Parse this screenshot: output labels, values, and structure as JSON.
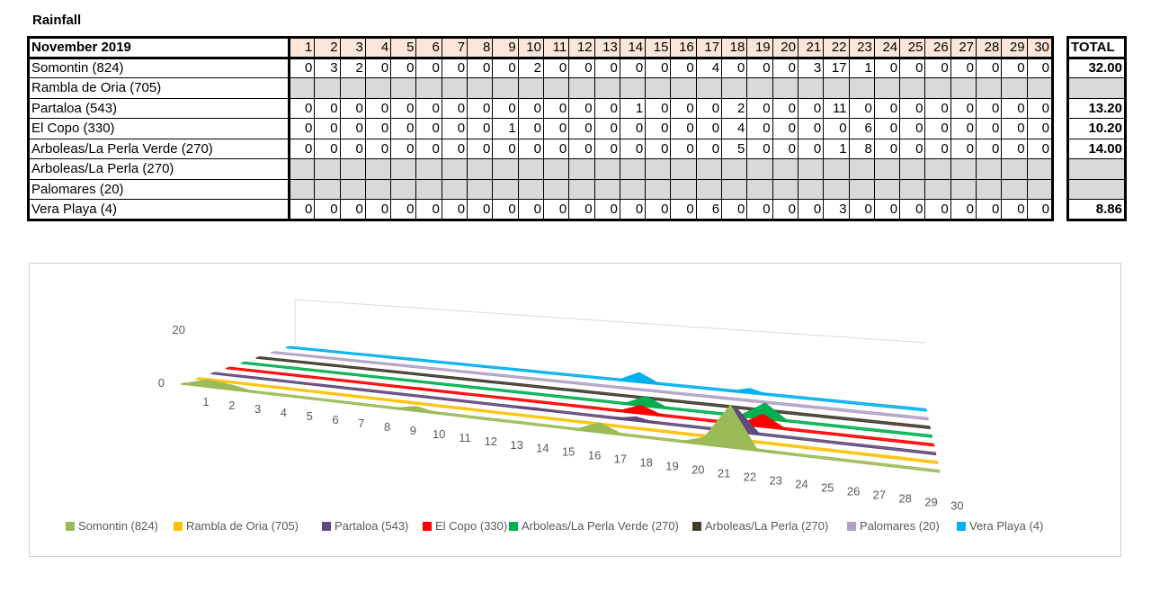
{
  "sheet_title": "Rainfall",
  "table": {
    "header_label": "November 2019",
    "days": [
      "1",
      "2",
      "3",
      "4",
      "5",
      "6",
      "7",
      "8",
      "9",
      "10",
      "11",
      "12",
      "13",
      "14",
      "15",
      "16",
      "17",
      "18",
      "19",
      "20",
      "21",
      "22",
      "23",
      "24",
      "25",
      "26",
      "27",
      "28",
      "29",
      "30"
    ],
    "total_label": "TOTAL",
    "rows": [
      {
        "name": "Somontin (824)",
        "values": [
          0,
          3,
          2,
          0,
          0,
          0,
          0,
          0,
          0,
          2,
          0,
          0,
          0,
          0,
          0,
          0,
          4,
          0,
          0,
          0,
          3,
          17,
          1,
          0,
          0,
          0,
          0,
          0,
          0,
          0
        ],
        "total": "32.00"
      },
      {
        "name": "Rambla de Oria (705)",
        "values": null,
        "total": ""
      },
      {
        "name": "Partaloa (543)",
        "values": [
          0,
          0,
          0,
          0,
          0,
          0,
          0,
          0,
          0,
          0,
          0,
          0,
          0,
          1,
          0,
          0,
          0,
          2,
          0,
          0,
          0,
          11,
          0,
          0,
          0,
          0,
          0,
          0,
          0,
          0
        ],
        "total": "13.20"
      },
      {
        "name": "El Copo (330)",
        "values": [
          0,
          0,
          0,
          0,
          0,
          0,
          0,
          0,
          1,
          0,
          0,
          0,
          0,
          0,
          0,
          0,
          0,
          4,
          0,
          0,
          0,
          0,
          6,
          0,
          0,
          0,
          0,
          0,
          0,
          0
        ],
        "total": "10.20"
      },
      {
        "name": "Arboleas/La Perla Verde (270)",
        "values": [
          0,
          0,
          0,
          0,
          0,
          0,
          0,
          0,
          0,
          0,
          0,
          0,
          0,
          0,
          0,
          0,
          0,
          5,
          0,
          0,
          0,
          1,
          8,
          0,
          0,
          0,
          0,
          0,
          0,
          0
        ],
        "total": "14.00"
      },
      {
        "name": "Arboleas/La Perla (270)",
        "values": null,
        "total": ""
      },
      {
        "name": "Palomares (20)",
        "values": null,
        "total": ""
      },
      {
        "name": "Vera Playa (4)",
        "values": [
          0,
          0,
          0,
          0,
          0,
          0,
          0,
          0,
          0,
          0,
          0,
          0,
          0,
          0,
          0,
          0,
          6,
          0,
          0,
          0,
          0,
          3,
          0,
          0,
          0,
          0,
          0,
          0,
          0,
          0
        ],
        "total": "8.86"
      }
    ]
  },
  "chart_data": {
    "type": "area",
    "x": [
      1,
      2,
      3,
      4,
      5,
      6,
      7,
      8,
      9,
      10,
      11,
      12,
      13,
      14,
      15,
      16,
      17,
      18,
      19,
      20,
      21,
      22,
      23,
      24,
      25,
      26,
      27,
      28,
      29,
      30
    ],
    "z_ticks": [
      "0",
      "20"
    ],
    "zlim": [
      0,
      20
    ],
    "legend_position": "bottom",
    "series": [
      {
        "name": "Somontin (824)",
        "color": "#9bbb59",
        "values": [
          0,
          3,
          2,
          0,
          0,
          0,
          0,
          0,
          0,
          2,
          0,
          0,
          0,
          0,
          0,
          0,
          4,
          0,
          0,
          0,
          3,
          17,
          1,
          0,
          0,
          0,
          0,
          0,
          0,
          0
        ]
      },
      {
        "name": "Rambla de Oria (705)",
        "color": "#ffc000",
        "values": [
          0,
          0,
          0,
          0,
          0,
          0,
          0,
          0,
          0,
          0,
          0,
          0,
          0,
          0,
          0,
          0,
          0,
          0,
          0,
          0,
          0,
          0,
          0,
          0,
          0,
          0,
          0,
          0,
          0,
          0
        ]
      },
      {
        "name": "Partaloa (543)",
        "color": "#604a7b",
        "values": [
          0,
          0,
          0,
          0,
          0,
          0,
          0,
          0,
          0,
          0,
          0,
          0,
          0,
          1,
          0,
          0,
          0,
          2,
          0,
          0,
          0,
          11,
          0,
          0,
          0,
          0,
          0,
          0,
          0,
          0
        ]
      },
      {
        "name": "El Copo (330)",
        "color": "#ff0000",
        "values": [
          0,
          0,
          0,
          0,
          0,
          0,
          0,
          0,
          1,
          0,
          0,
          0,
          0,
          0,
          0,
          0,
          0,
          4,
          0,
          0,
          0,
          0,
          6,
          0,
          0,
          0,
          0,
          0,
          0,
          0
        ]
      },
      {
        "name": "Arboleas/La Perla Verde (270)",
        "color": "#00b050",
        "values": [
          0,
          0,
          0,
          0,
          0,
          0,
          0,
          0,
          0,
          0,
          0,
          0,
          0,
          0,
          0,
          0,
          0,
          5,
          0,
          0,
          0,
          1,
          8,
          0,
          0,
          0,
          0,
          0,
          0,
          0
        ]
      },
      {
        "name": "Arboleas/La Perla (270)",
        "color": "#403b2b",
        "values": [
          0,
          0,
          0,
          0,
          0,
          0,
          0,
          0,
          0,
          0,
          0,
          0,
          0,
          0,
          0,
          0,
          0,
          0,
          0,
          0,
          0,
          0,
          0,
          0,
          0,
          0,
          0,
          0,
          0,
          0
        ]
      },
      {
        "name": "Palomares (20)",
        "color": "#b1a0c7",
        "values": [
          0,
          0,
          0,
          0,
          0,
          0,
          0,
          0,
          0,
          0,
          0,
          0,
          0,
          0,
          0,
          0,
          0,
          0,
          0,
          0,
          0,
          0,
          0,
          0,
          0,
          0,
          0,
          0,
          0,
          0
        ]
      },
      {
        "name": "Vera Playa (4)",
        "color": "#00b0f0",
        "values": [
          0,
          0,
          0,
          0,
          0,
          0,
          0,
          0,
          0,
          0,
          0,
          0,
          0,
          0,
          0,
          0,
          6,
          0,
          0,
          0,
          0,
          3,
          0,
          0,
          0,
          0,
          0,
          0,
          0,
          0
        ]
      }
    ]
  }
}
